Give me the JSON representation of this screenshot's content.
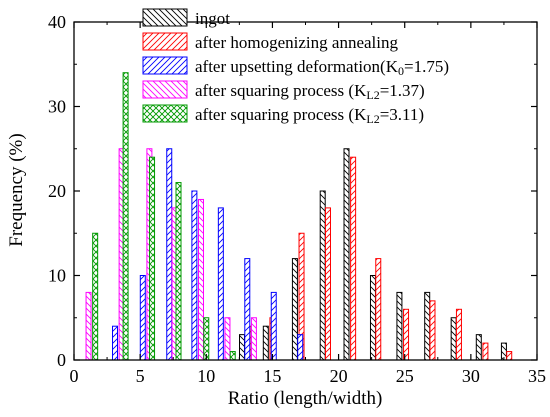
{
  "chart_data": {
    "type": "bar",
    "xlabel": "Ratio (length/width)",
    "ylabel": "Frequency (%)",
    "xlim": [
      0,
      35
    ],
    "ylim": [
      0,
      40
    ],
    "xticks": [
      0,
      5,
      10,
      15,
      20,
      25,
      30,
      35
    ],
    "yticks": [
      0,
      10,
      20,
      30,
      40
    ],
    "grid": false,
    "legend_position": "top-center",
    "series": [
      {
        "name": "ingot",
        "color": "#000000",
        "pattern": "hatch-backslash",
        "points": [
          [
            12.7,
            3
          ],
          [
            14.5,
            4
          ],
          [
            16.7,
            12
          ],
          [
            18.8,
            20
          ],
          [
            20.6,
            25
          ],
          [
            22.6,
            10
          ],
          [
            24.6,
            8
          ],
          [
            26.7,
            8
          ],
          [
            28.7,
            5
          ],
          [
            30.6,
            3
          ],
          [
            32.5,
            2
          ]
        ]
      },
      {
        "name": "after homogenizing annealing",
        "color": "#ff0000",
        "pattern": "hatch-slash",
        "points": [
          [
            13.2,
            4
          ],
          [
            15.0,
            5
          ],
          [
            17.2,
            15
          ],
          [
            19.2,
            18
          ],
          [
            21.1,
            24
          ],
          [
            23.0,
            12
          ],
          [
            25.1,
            6
          ],
          [
            27.1,
            7
          ],
          [
            29.1,
            6
          ],
          [
            31.1,
            2
          ],
          [
            32.9,
            1
          ]
        ]
      },
      {
        "name_parts": [
          "after upsetting deformation(K",
          "0",
          "=1.75)"
        ],
        "color": "#0000ff",
        "pattern": "hatch-slash",
        "points": [
          [
            3.1,
            4
          ],
          [
            5.2,
            10
          ],
          [
            7.2,
            25
          ],
          [
            9.1,
            20
          ],
          [
            11.1,
            18
          ],
          [
            13.1,
            12
          ],
          [
            15.1,
            8
          ],
          [
            17.1,
            3
          ],
          [
            18.8,
            0
          ]
        ]
      },
      {
        "name_parts": [
          "after squaring process (K",
          "L2",
          "=1.37)"
        ],
        "color": "#ff00ff",
        "pattern": "hatch-backslash",
        "points": [
          [
            1.1,
            8
          ],
          [
            3.6,
            25
          ],
          [
            5.7,
            25
          ],
          [
            7.6,
            18
          ],
          [
            9.6,
            19
          ],
          [
            11.6,
            5
          ],
          [
            13.6,
            5
          ],
          [
            15.6,
            0
          ]
        ]
      },
      {
        "name_parts": [
          "after squaring process (K",
          "L2",
          "=3.11)"
        ],
        "color": "#009900",
        "pattern": "crosshatch",
        "points": [
          [
            1.6,
            15
          ],
          [
            3.9,
            34
          ],
          [
            5.9,
            24
          ],
          [
            7.9,
            21
          ],
          [
            10.0,
            5
          ],
          [
            12.0,
            1
          ]
        ]
      }
    ]
  }
}
